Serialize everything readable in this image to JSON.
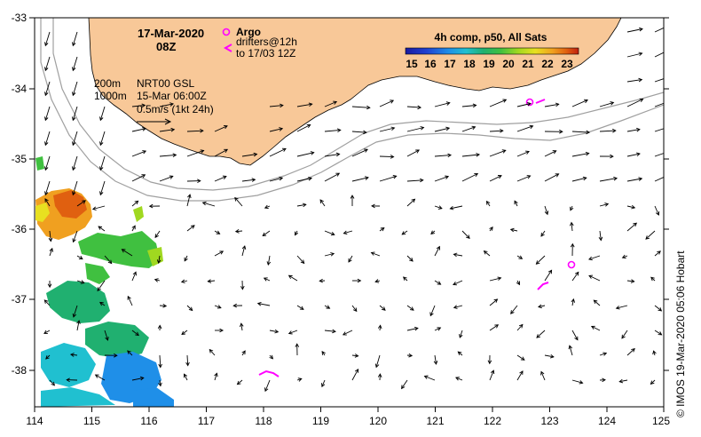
{
  "header": {
    "date": "17-Mar-2020",
    "time": "08Z"
  },
  "legend": {
    "argo_label": "Argo",
    "drifters_line1": "drifters@12h",
    "drifters_line2": "to 17/03 12Z",
    "depth_200": "200m",
    "depth_1000": "1000m",
    "product": "NRT00 GSL",
    "product_date": "15-Mar 06:00Z",
    "scale": "0.5m/s (1kt 24h)"
  },
  "colorbar": {
    "title": "4h comp, p50, All Sats",
    "ticks": [
      "15",
      "16",
      "17",
      "18",
      "19",
      "20",
      "21",
      "22",
      "23"
    ],
    "colors": [
      "#1a1aa0",
      "#1f3fd0",
      "#1f8fe8",
      "#20c0d0",
      "#20b070",
      "#40c040",
      "#a0d820",
      "#e8e020",
      "#f0a020",
      "#e06010",
      "#c02010"
    ]
  },
  "axes": {
    "lon_labels": [
      "114",
      "115",
      "116",
      "117",
      "118",
      "119",
      "120",
      "121",
      "122",
      "123",
      "124",
      "125"
    ],
    "lat_labels": [
      "-33",
      "-34",
      "-35",
      "-36",
      "-37",
      "-38"
    ]
  },
  "credit": "© IMOS 19-Mar-2020 05:06 Hobart",
  "colors": {
    "land": "#f8c898",
    "argo": "#ff00ff",
    "isobath": "#a0a0a0"
  }
}
